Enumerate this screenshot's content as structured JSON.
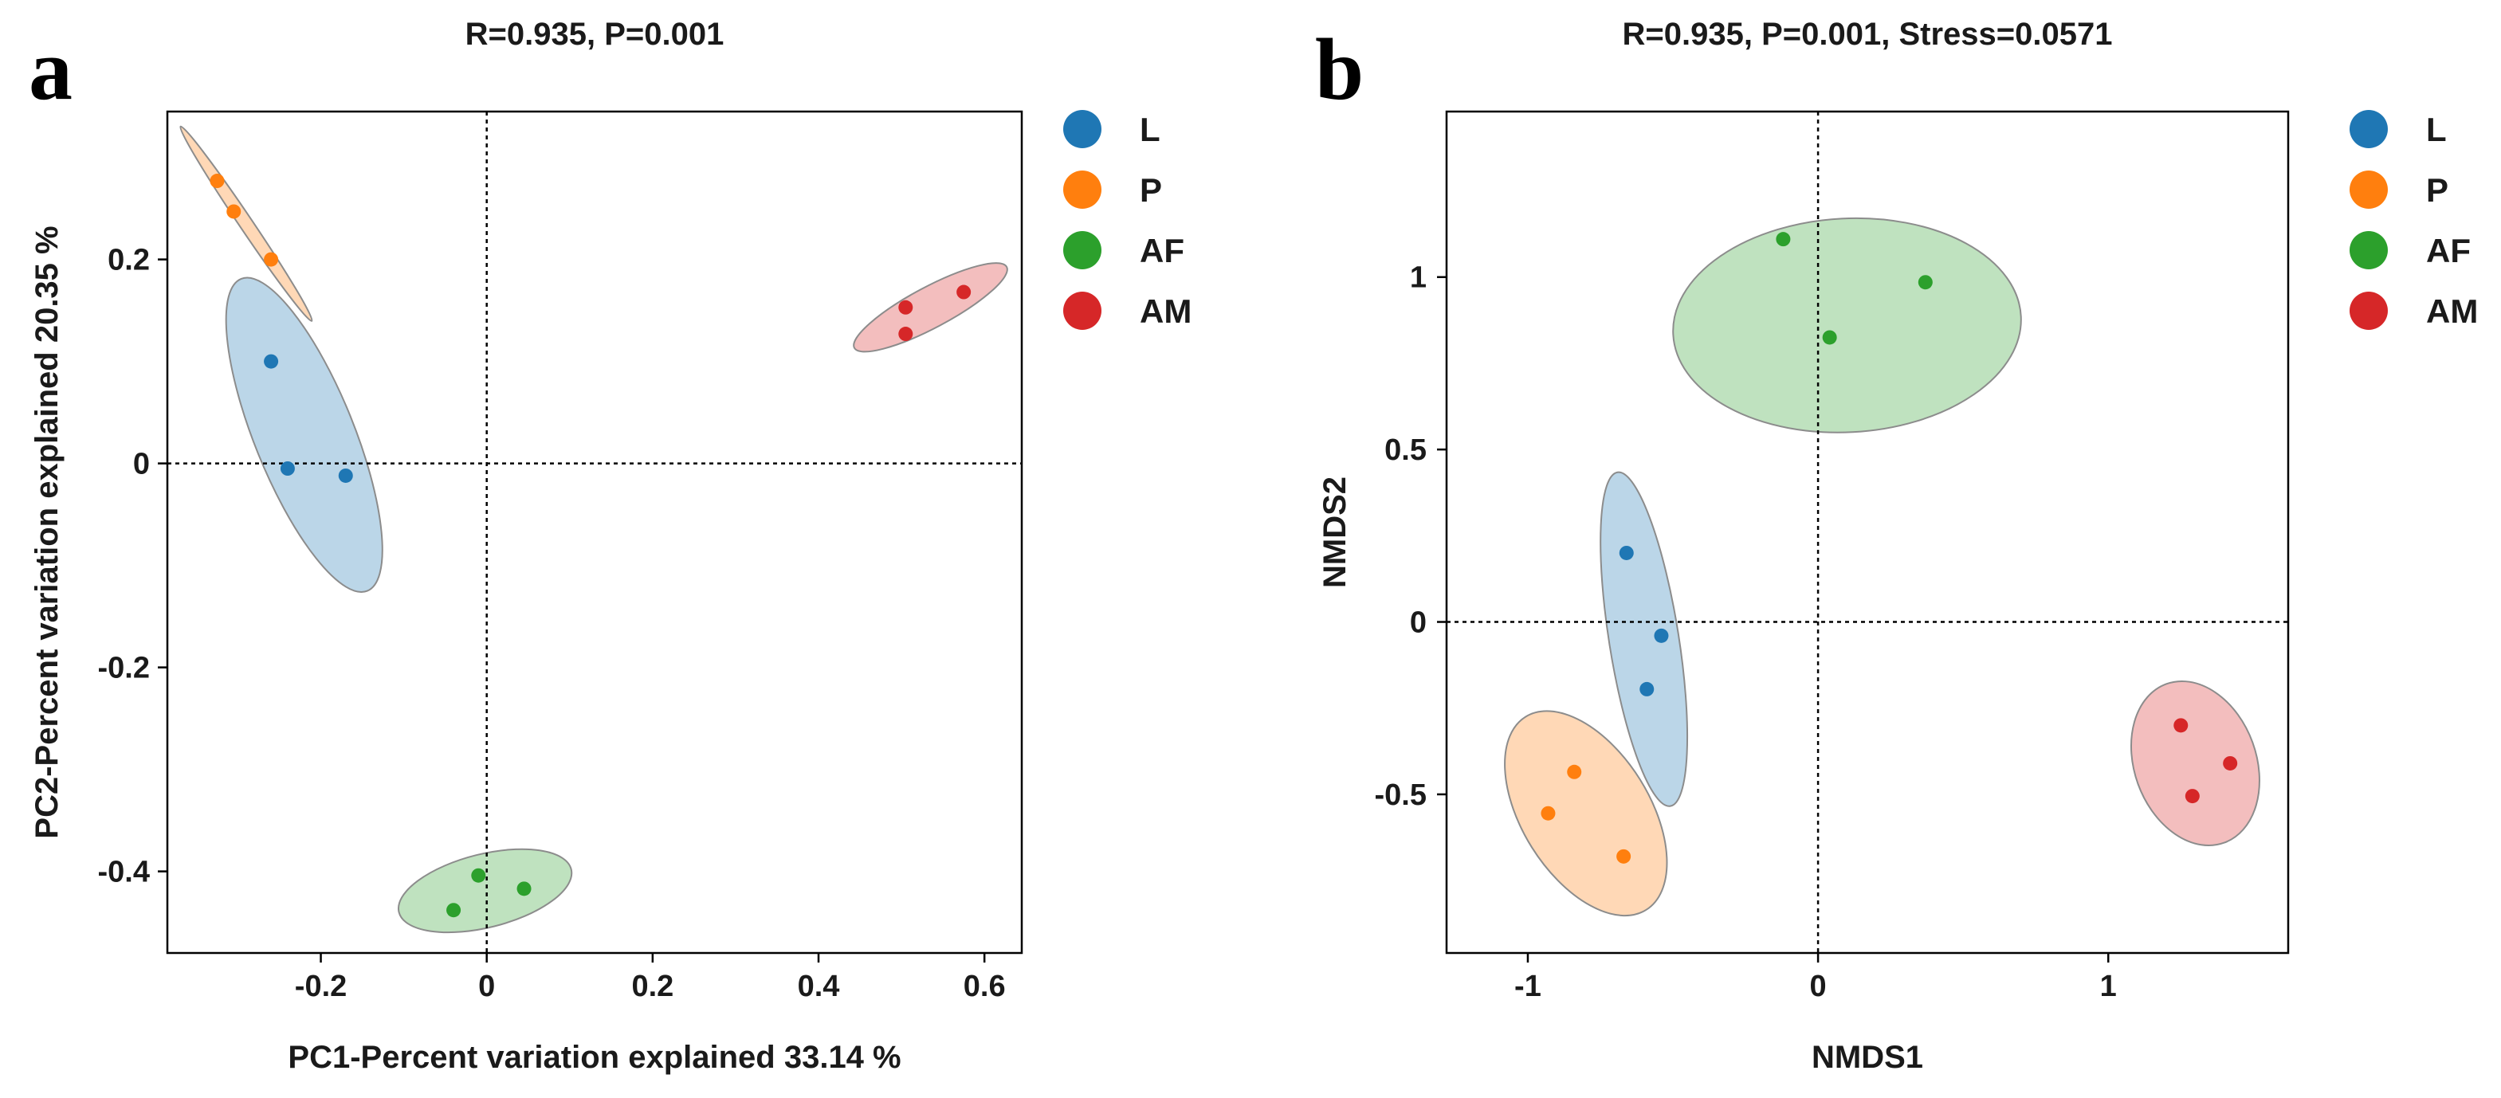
{
  "chart_data": [
    {
      "type": "scatter",
      "panel_label": "a",
      "title": "R=0.935, P=0.001",
      "xlabel": "PC1-Percent variation explained 33.14 %",
      "ylabel": "PC2-Percent variation explained 20.35 %",
      "xlim": [
        -0.385,
        0.645
      ],
      "ylim": [
        -0.48,
        0.345
      ],
      "xticks": [
        -0.2,
        0,
        0.2,
        0.4,
        0.6
      ],
      "xtick_labels": [
        "-0.2",
        "0",
        "0.2",
        "0.4",
        "0.6"
      ],
      "yticks": [
        -0.4,
        -0.2,
        0,
        0.2
      ],
      "ytick_labels": [
        "-0.4",
        "-0.2",
        "0",
        "0.2"
      ],
      "reference_lines": {
        "x": 0,
        "y": 0
      },
      "legend_position": "right",
      "series": [
        {
          "name": "L",
          "color": "#1f77b4",
          "x": [
            -0.26,
            -0.24,
            -0.17
          ],
          "y": [
            0.1,
            -0.005,
            -0.012
          ]
        },
        {
          "name": "P",
          "color": "#ff7f0e",
          "x": [
            -0.325,
            -0.305,
            -0.26
          ],
          "y": [
            0.277,
            0.247,
            0.2
          ]
        },
        {
          "name": "AF",
          "color": "#2ca02c",
          "x": [
            -0.04,
            -0.01,
            0.045
          ],
          "y": [
            -0.438,
            -0.404,
            -0.417
          ]
        },
        {
          "name": "AM",
          "color": "#d62728",
          "x": [
            0.505,
            0.505,
            0.575
          ],
          "y": [
            0.153,
            0.127,
            0.168
          ]
        }
      ],
      "ellipses": [
        {
          "series": "L",
          "cx": -0.22,
          "cy": 0.028,
          "rx": 0.06,
          "ry": 0.165,
          "angle_deg": -22
        },
        {
          "series": "P",
          "cx": -0.29,
          "cy": 0.235,
          "rx": 0.008,
          "ry": 0.115,
          "angle_deg": -34
        },
        {
          "series": "AF",
          "cx": -0.002,
          "cy": -0.419,
          "rx": 0.107,
          "ry": 0.036,
          "angle_deg": -14
        },
        {
          "series": "AM",
          "cx": 0.535,
          "cy": 0.153,
          "rx": 0.104,
          "ry": 0.02,
          "angle_deg": -28
        }
      ]
    },
    {
      "type": "scatter",
      "panel_label": "b",
      "title": "R=0.935, P=0.001, Stress=0.0571",
      "xlabel": "NMDS1",
      "ylabel": "NMDS2",
      "xlim": [
        -1.28,
        1.62
      ],
      "ylim": [
        -0.96,
        1.48
      ],
      "xticks": [
        -1,
        0,
        1
      ],
      "xtick_labels": [
        "-1",
        "0",
        "1"
      ],
      "yticks": [
        -0.5,
        0,
        0.5,
        1
      ],
      "ytick_labels": [
        "-0.5",
        "0",
        "0.5",
        "1"
      ],
      "reference_lines": {
        "x": 0,
        "y": 0
      },
      "legend_position": "right",
      "series": [
        {
          "name": "L",
          "color": "#1f77b4",
          "x": [
            -0.66,
            -0.54,
            -0.59
          ],
          "y": [
            0.2,
            -0.04,
            -0.195
          ]
        },
        {
          "name": "P",
          "color": "#ff7f0e",
          "x": [
            -0.84,
            -0.93,
            -0.67
          ],
          "y": [
            -0.435,
            -0.555,
            -0.68
          ]
        },
        {
          "name": "AF",
          "color": "#2ca02c",
          "x": [
            -0.12,
            0.04,
            0.37
          ],
          "y": [
            1.11,
            0.825,
            0.985
          ]
        },
        {
          "name": "AM",
          "color": "#d62728",
          "x": [
            1.25,
            1.29,
            1.42
          ],
          "y": [
            -0.3,
            -0.505,
            -0.41
          ]
        }
      ],
      "ellipses": [
        {
          "series": "L",
          "cx": -0.6,
          "cy": -0.05,
          "rx": 0.12,
          "ry": 0.49,
          "angle_deg": -9
        },
        {
          "series": "P",
          "cx": -0.8,
          "cy": -0.555,
          "rx": 0.22,
          "ry": 0.33,
          "angle_deg": -32
        },
        {
          "series": "AF",
          "cx": 0.1,
          "cy": 0.86,
          "rx": 0.6,
          "ry": 0.31,
          "angle_deg": -3
        },
        {
          "series": "AM",
          "cx": 1.3,
          "cy": -0.41,
          "rx": 0.21,
          "ry": 0.245,
          "angle_deg": -20
        }
      ]
    }
  ]
}
